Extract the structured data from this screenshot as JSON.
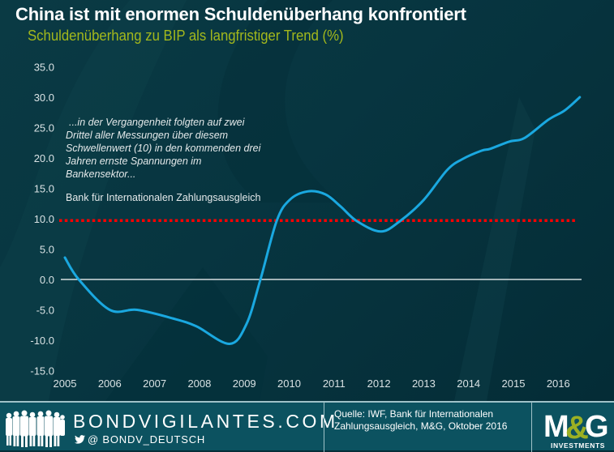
{
  "header": {
    "title": "China ist mit enormen Schuldenüberhang konfrontiert",
    "subtitle": "Schuldenüberhang zu BIP als langfristiger Trend (%)"
  },
  "annotation": {
    "lines": [
      "...in  der Vergangenheit folgten auf zwei",
      "Drittel aller Messungen über diesem",
      "Schwellenwert  (10) in den kommenden drei",
      "Jahren ernste Spannungen im",
      "Bankensektor..."
    ],
    "source": "Bank für Internationalen  Zahlungsausgleich"
  },
  "footer": {
    "brand": "BONDVIGILANTES.COM",
    "twitter": "@ BONDV_DEUTSCH",
    "source_lines": [
      "Quelle: IWF, Bank für Internationalen",
      "Zahlungsausgleich, M&G, Oktober 2016"
    ],
    "logo_text": "M&G",
    "logo_subtext": "INVESTMENTS",
    "icons": [
      "people-silhouette-icon",
      "twitter-bird-icon"
    ]
  },
  "colors": {
    "line": "#1aa8e0",
    "threshold": "#ff0000",
    "zero_line": "#ffffff",
    "subtitle": "#a3b81c",
    "logo_accent": "#9bb023"
  },
  "chart_data": {
    "type": "line",
    "title": "China ist mit enormen Schuldenüberhang konfrontiert",
    "subtitle": "Schuldenüberhang zu BIP als langfristiger Trend (%)",
    "xlabel": "",
    "ylabel": "",
    "ylim": [
      -15,
      35
    ],
    "yticks": [
      35,
      30,
      25,
      20,
      15,
      10,
      5,
      0,
      -5,
      -10,
      -15
    ],
    "ytick_labels": [
      "35.0",
      "30.0",
      "25.0",
      "20.0",
      "15.0",
      "10.0",
      "5.0",
      "0.0",
      "-5.0",
      "-10.0",
      "-15.0"
    ],
    "xlim": [
      2005,
      2016.5
    ],
    "xtick_labels": [
      "2005",
      "2006",
      "2007",
      "2008",
      "2009",
      "2010",
      "2011",
      "2012",
      "2013",
      "2014",
      "2015",
      "2016"
    ],
    "grid": false,
    "legend": "none",
    "series": [
      {
        "name": "Schuldenüberhang zu BIP (China)",
        "x": [
          2005.0,
          2005.31,
          2006.0,
          2006.61,
          2007.4,
          2007.93,
          2008.67,
          2009.05,
          2009.36,
          2009.72,
          2010.01,
          2010.41,
          2010.81,
          2011.15,
          2011.51,
          2012.04,
          2012.47,
          2013.0,
          2013.52,
          2013.86,
          2014.29,
          2014.48,
          2014.91,
          2015.25,
          2015.78,
          2016.14,
          2016.48
        ],
        "y": [
          3.6,
          0.0,
          -5.0,
          -5.0,
          -6.4,
          -7.7,
          -10.6,
          -7.3,
          0.0,
          9.6,
          13.1,
          14.5,
          14.0,
          12.0,
          9.6,
          7.9,
          9.6,
          13.1,
          18.0,
          19.8,
          21.2,
          21.5,
          22.7,
          23.3,
          26.3,
          27.8,
          30.0
        ]
      }
    ],
    "reference_lines": [
      {
        "name": "Schwellenwert",
        "y": 10,
        "style": "dotted",
        "color": "#ff0000"
      },
      {
        "name": "Nulllinie",
        "y": 0,
        "style": "solid",
        "color": "#ffffff"
      }
    ]
  }
}
